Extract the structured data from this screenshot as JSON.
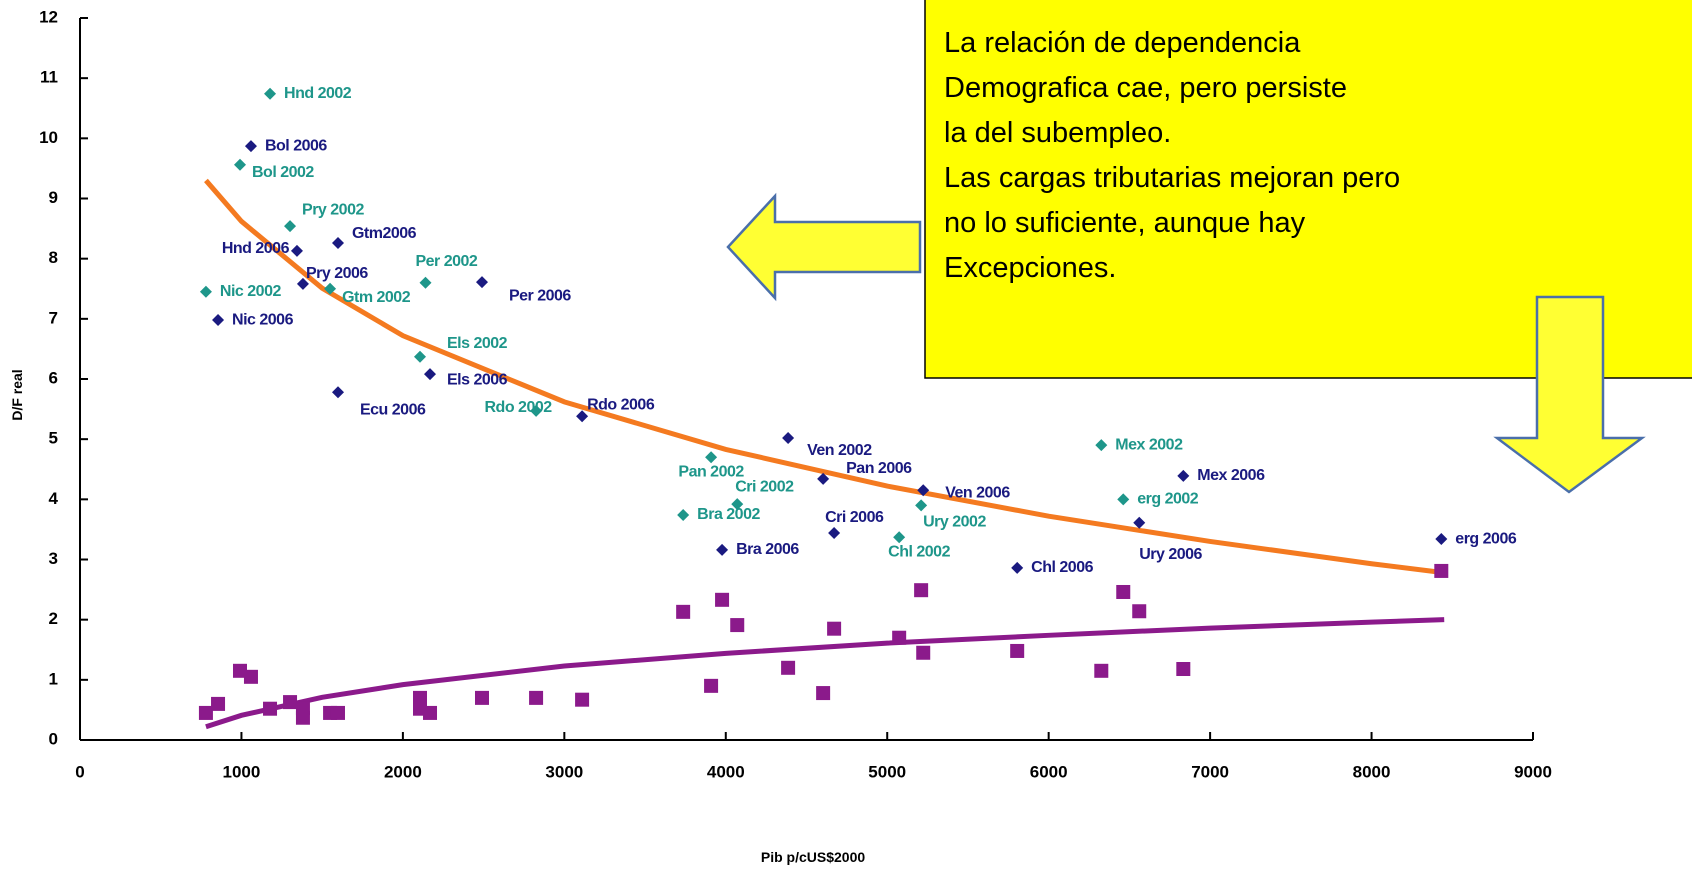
{
  "chart_data": {
    "type": "scatter",
    "xlabel": "Pib p/cUS$2000",
    "ylabel": "D/F real",
    "xlim": [
      0,
      9000
    ],
    "ylim": [
      0,
      12
    ],
    "xticks": [
      0,
      1000,
      2000,
      3000,
      4000,
      5000,
      6000,
      7000,
      8000,
      9000
    ],
    "yticks": [
      0,
      1,
      2,
      3,
      4,
      5,
      6,
      7,
      8,
      9,
      10,
      11,
      12
    ],
    "series": [
      {
        "color": "#1e968a",
        "marker": "diamond",
        "labels": [
          "Hnd 2002",
          "Bol  2002",
          "Pry  2002",
          "Nic  2002",
          "Gtm 2002",
          "Per  2002",
          "Els  2002",
          "Rdo 2002",
          "Pan  2002",
          "Cri 2002",
          "Bra 2002",
          "Ury 2002",
          "Chl 2002",
          "Mex  2002",
          "erg  2002"
        ],
        "x": [
          1177,
          991,
          1301,
          780,
          1549,
          2140,
          2106,
          2825,
          3909,
          4071,
          3736,
          5210,
          5074,
          6326,
          6462
        ],
        "values": [
          10.74,
          9.56,
          8.54,
          7.45,
          7.5,
          7.6,
          6.37,
          5.47,
          4.7,
          3.92,
          3.74,
          3.9,
          3.37,
          4.9,
          4.0
        ]
      },
      {
        "color": "#1a1a80",
        "marker": "diamond",
        "labels": [
          "Bol  2006",
          "Hnd 2006",
          "Gtm2006",
          "Pry 2006",
          "Nic 2006",
          "Per 2006",
          "Els 2006",
          "Ecu 2006",
          "Rdo 2006",
          "Ven 2002",
          "Pan 2006",
          "Cri 2006",
          "Bra 2006",
          "Ven 2006",
          "Chl 2006",
          "Ury 2006",
          "Mex 2006",
          "erg 2006"
        ],
        "x": [
          1059,
          1344,
          1598,
          1381,
          855,
          2490,
          2168,
          1598,
          3110,
          4386,
          4603,
          4671,
          3977,
          5223,
          5805,
          6561,
          6834,
          8432
        ],
        "values": [
          9.87,
          8.13,
          8.26,
          7.58,
          6.98,
          7.61,
          6.08,
          5.78,
          5.38,
          5.02,
          4.34,
          3.44,
          3.16,
          4.15,
          2.86,
          3.61,
          4.39,
          3.34
        ]
      },
      {
        "color": "#8b1a8b",
        "marker": "square",
        "x": [
          780,
          855,
          991,
          1059,
          1177,
          1301,
          1381,
          1381,
          1549,
          1598,
          2106,
          2106,
          2168,
          2490,
          2825,
          3110,
          3736,
          3909,
          3977,
          4071,
          4386,
          4603,
          4671,
          5074,
          5210,
          5223,
          5805,
          6326,
          6462,
          6561,
          6834,
          8432
        ],
        "values": [
          0.45,
          0.6,
          1.15,
          1.05,
          0.52,
          0.63,
          0.53,
          0.37,
          0.45,
          0.45,
          0.7,
          0.52,
          0.45,
          0.7,
          0.7,
          0.67,
          2.13,
          0.9,
          2.33,
          1.91,
          1.2,
          0.78,
          1.85,
          1.7,
          2.49,
          1.45,
          1.48,
          1.15,
          2.46,
          2.14,
          1.18,
          2.81
        ]
      }
    ],
    "trendlines": [
      {
        "color": "#f47a20",
        "x": [
          780,
          1000,
          1500,
          2000,
          3000,
          4000,
          5000,
          6000,
          7000,
          8000,
          8450
        ],
        "values": [
          9.3,
          8.62,
          7.51,
          6.72,
          5.62,
          4.83,
          4.22,
          3.72,
          3.3,
          2.93,
          2.78
        ]
      },
      {
        "color": "#8b1a8b",
        "x": [
          780,
          1000,
          1500,
          2000,
          3000,
          4000,
          5000,
          6000,
          7000,
          8000,
          8450
        ],
        "values": [
          0.22,
          0.41,
          0.71,
          0.92,
          1.23,
          1.44,
          1.61,
          1.74,
          1.86,
          1.96,
          2.0
        ]
      }
    ],
    "annotation": [
      "La relación de dependencia",
      "Demografica  cae, pero persiste",
      "la del subempleo.",
      "Las cargas tributarias mejoran pero",
      "no lo suficiente, aunque hay",
      "Excepciones."
    ]
  }
}
